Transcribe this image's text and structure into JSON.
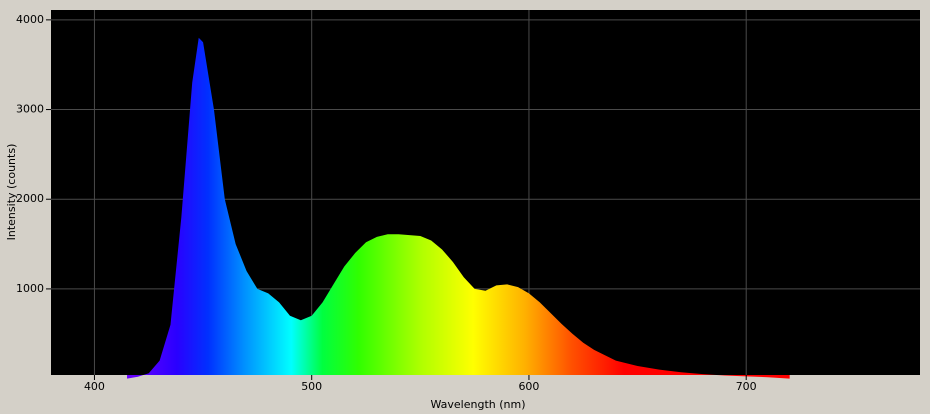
{
  "chart_data": {
    "type": "area",
    "x_label": "Wavelength (nm)",
    "y_label": "Intensity (counts)",
    "x": [
      415,
      420,
      425,
      430,
      435,
      440,
      445,
      448,
      450,
      455,
      460,
      465,
      470,
      475,
      480,
      485,
      490,
      495,
      500,
      505,
      510,
      515,
      520,
      525,
      530,
      535,
      540,
      545,
      550,
      555,
      560,
      565,
      570,
      575,
      580,
      585,
      590,
      595,
      600,
      605,
      610,
      615,
      620,
      625,
      630,
      635,
      640,
      650,
      660,
      670,
      680,
      690,
      700,
      710,
      720
    ],
    "values": [
      0,
      20,
      60,
      200,
      600,
      1800,
      3300,
      3800,
      3750,
      3000,
      2000,
      1500,
      1200,
      1000,
      950,
      850,
      700,
      650,
      700,
      850,
      1050,
      1250,
      1400,
      1520,
      1580,
      1610,
      1610,
      1600,
      1590,
      1540,
      1440,
      1300,
      1130,
      1000,
      980,
      1040,
      1050,
      1020,
      950,
      850,
      730,
      610,
      500,
      400,
      320,
      260,
      200,
      140,
      100,
      70,
      50,
      35,
      25,
      15,
      0
    ],
    "xlim": [
      380,
      780
    ],
    "ylim": [
      40,
      4110
    ],
    "xticks": [
      400,
      500,
      600,
      700
    ],
    "yticks": [
      1000,
      2000,
      3000,
      4000
    ],
    "grid": true
  }
}
